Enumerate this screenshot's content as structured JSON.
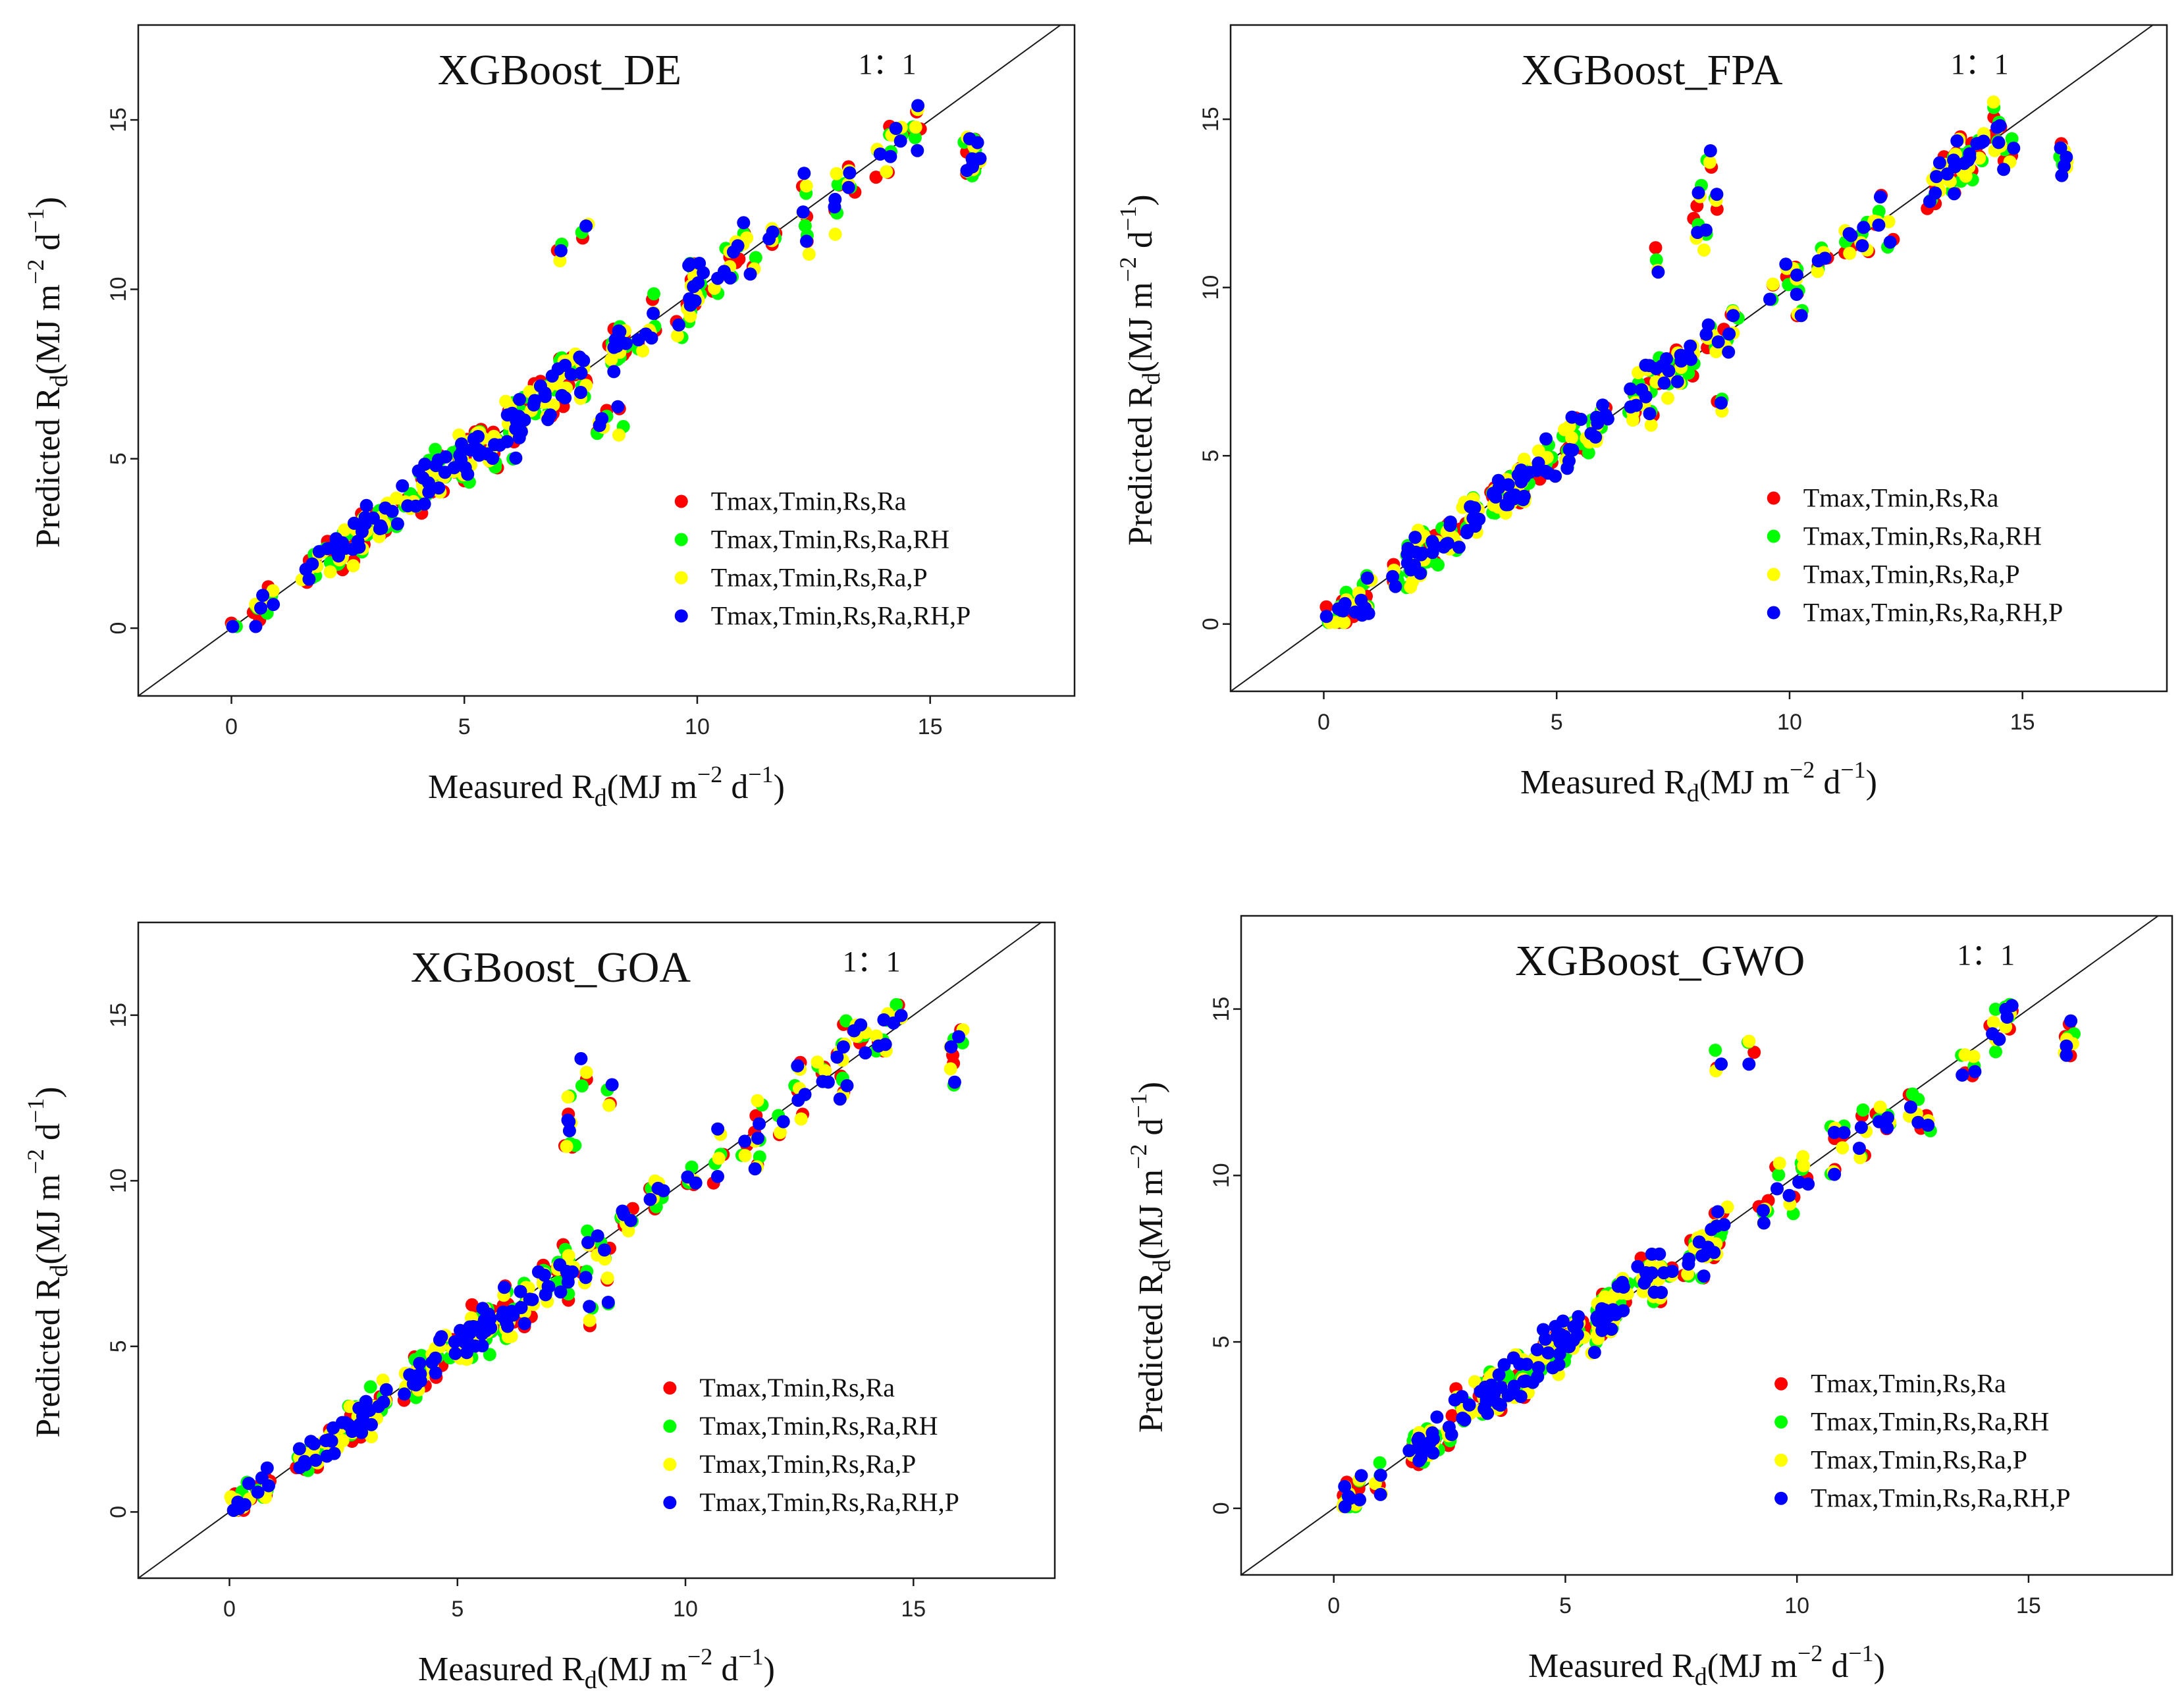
{
  "figure": {
    "x_label_parts": [
      "Measured R",
      "d",
      "(MJ m",
      "−2",
      " d",
      "−1",
      ")"
    ],
    "y_label_parts": [
      "Predicted R",
      "d",
      "(MJ m",
      "−2",
      " d",
      "−1",
      ")"
    ],
    "one_to_one_label": "1：1"
  },
  "chart_data": [
    {
      "type": "scatter",
      "title": "XGBoost_DE",
      "xlabel": "Measured Rd(MJ m-2 d-1)",
      "ylabel": "Predicted Rd(MJ m-2 d-1)",
      "xlim": [
        -2,
        18.1
      ],
      "ylim": [
        -2,
        17.8
      ],
      "xticks": [
        0,
        5,
        10,
        15
      ],
      "yticks": [
        0,
        5,
        10,
        15
      ],
      "reference_line": "1:1",
      "seed": 11,
      "series": [
        {
          "name": "Tmax,Tmin,Rs,Ra",
          "color": "#ff0000"
        },
        {
          "name": "Tmax,Tmin,Rs,Ra,RH",
          "color": "#00ff00"
        },
        {
          "name": "Tmax,Tmin,Rs,Ra,P",
          "color": "#ffff00"
        },
        {
          "name": "Tmax,Tmin,Rs,Ra,RH,P",
          "color": "#0000ff"
        }
      ]
    },
    {
      "type": "scatter",
      "title": "XGBoost_FPA",
      "xlabel": "Measured Rd(MJ m-2 d-1)",
      "ylabel": "Predicted Rd(MJ m-2 d-1)",
      "xlim": [
        -2,
        18.1
      ],
      "ylim": [
        -2,
        17.8
      ],
      "xticks": [
        0,
        5,
        10,
        15
      ],
      "yticks": [
        0,
        5,
        10,
        15
      ],
      "reference_line": "1:1",
      "seed": 23,
      "series": [
        {
          "name": "Tmax,Tmin,Rs,Ra",
          "color": "#ff0000"
        },
        {
          "name": "Tmax,Tmin,Rs,Ra,RH",
          "color": "#00ff00"
        },
        {
          "name": "Tmax,Tmin,Rs,Ra,P",
          "color": "#ffff00"
        },
        {
          "name": "Tmax,Tmin,Rs,Ra,RH,P",
          "color": "#0000ff"
        }
      ]
    },
    {
      "type": "scatter",
      "title": "XGBoost_GOA",
      "xlabel": "Measured Rd(MJ m-2 d-1)",
      "ylabel": "Predicted Rd(MJ m-2 d-1)",
      "xlim": [
        -2,
        18.1
      ],
      "ylim": [
        -2,
        17.8
      ],
      "xticks": [
        0,
        5,
        10,
        15
      ],
      "yticks": [
        0,
        5,
        10,
        15
      ],
      "reference_line": "1:1",
      "seed": 37,
      "series": [
        {
          "name": "Tmax,Tmin,Rs,Ra",
          "color": "#ff0000"
        },
        {
          "name": "Tmax,Tmin,Rs,Ra,RH",
          "color": "#00ff00"
        },
        {
          "name": "Tmax,Tmin,Rs,Ra,P",
          "color": "#ffff00"
        },
        {
          "name": "Tmax,Tmin,Rs,Ra,RH,P",
          "color": "#0000ff"
        }
      ]
    },
    {
      "type": "scatter",
      "title": "XGBoost_GWO",
      "xlabel": "Measured Rd(MJ m-2 d-1)",
      "ylabel": "Predicted Rd(MJ m-2 d-1)",
      "xlim": [
        -2,
        18.1
      ],
      "ylim": [
        -2,
        17.8
      ],
      "xticks": [
        0,
        5,
        10,
        15
      ],
      "yticks": [
        0,
        5,
        10,
        15
      ],
      "reference_line": "1:1",
      "seed": 53,
      "series": [
        {
          "name": "Tmax,Tmin,Rs,Ra",
          "color": "#ff0000"
        },
        {
          "name": "Tmax,Tmin,Rs,Ra,RH",
          "color": "#00ff00"
        },
        {
          "name": "Tmax,Tmin,Rs,Ra,P",
          "color": "#ffff00"
        },
        {
          "name": "Tmax,Tmin,Rs,Ra,RH,P",
          "color": "#0000ff"
        }
      ]
    }
  ]
}
